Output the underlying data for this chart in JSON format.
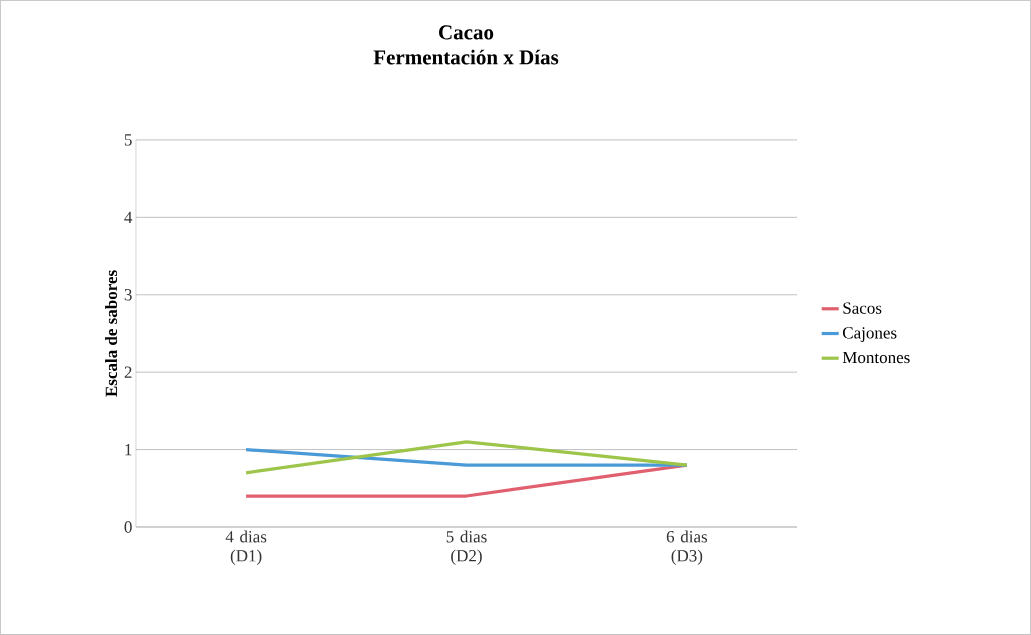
{
  "chart_data": {
    "type": "line",
    "title": "Cacao",
    "subtitle": "Fermentación x Días",
    "ylabel": "Escala de sabores",
    "categories": [
      "4 dias (D1)",
      "5 dias (D2)",
      "6 dias (D3)"
    ],
    "series": [
      {
        "name": "Sacos",
        "color": "#e06070",
        "values": [
          0.4,
          0.4,
          0.8
        ]
      },
      {
        "name": "Cajones",
        "color": "#4a9ad8",
        "values": [
          1.0,
          0.8,
          0.8
        ]
      },
      {
        "name": "Montones",
        "color": "#9cc54a",
        "values": [
          0.7,
          1.1,
          0.8
        ]
      }
    ],
    "ylim": [
      0,
      5
    ],
    "yticks": [
      0,
      1,
      2,
      3,
      4,
      5
    ],
    "grid": "y",
    "legend": "right"
  }
}
